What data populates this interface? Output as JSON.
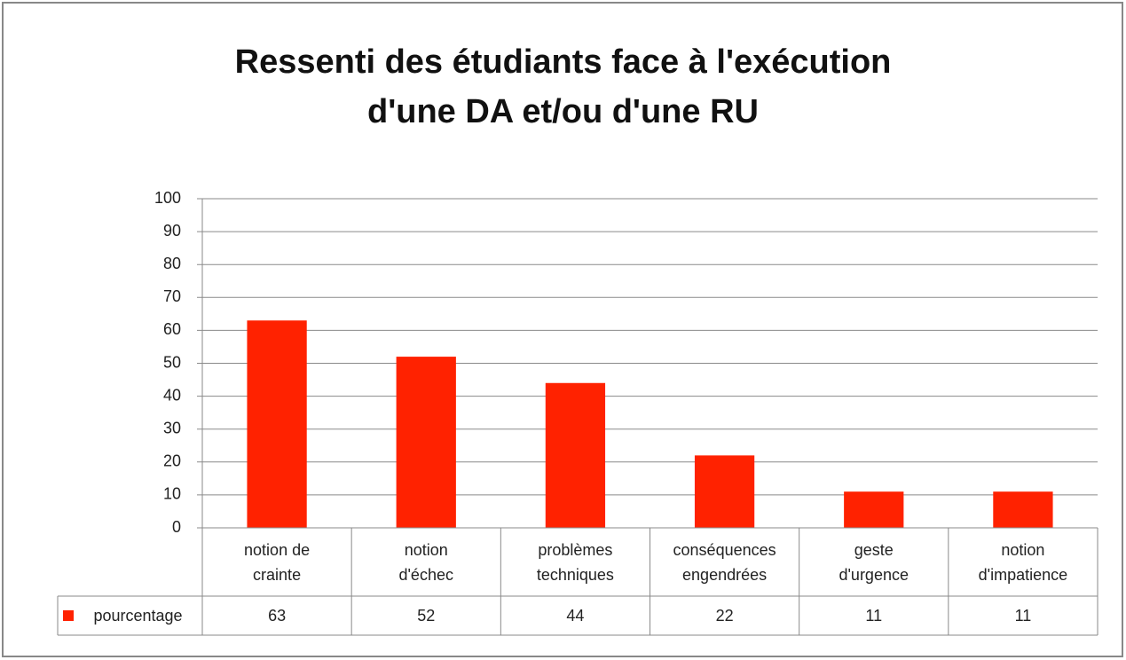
{
  "chart_data": {
    "type": "bar",
    "title": "Ressenti des étudiants face à l'exécution\nd'une DA et/ou d'une RU",
    "categories": [
      "notion de\ncrainte",
      "notion\nd'échec",
      "problèmes\ntechniques",
      "conséquences\nengendrées",
      "geste\nd'urgence",
      "notion\nd'impatience"
    ],
    "series": [
      {
        "name": "pourcentage",
        "color": "#ff2200",
        "values": [
          63,
          52,
          44,
          22,
          11,
          11
        ]
      }
    ],
    "ylim": [
      0,
      100
    ],
    "yticks": [
      0,
      10,
      20,
      30,
      40,
      50,
      60,
      70,
      80,
      90,
      100
    ],
    "grid": true
  }
}
